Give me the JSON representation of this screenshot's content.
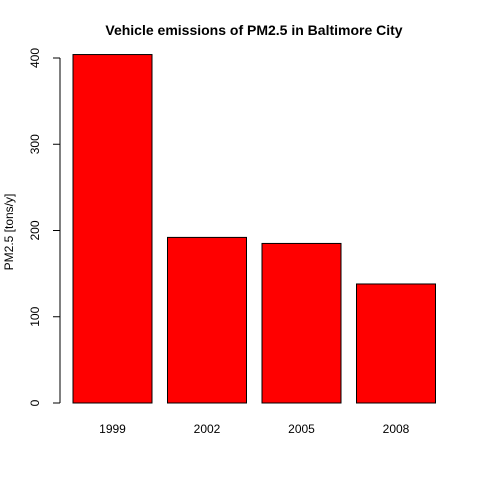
{
  "chart_data": {
    "type": "bar",
    "title": "Vehicle emissions of PM2.5 in Baltimore City",
    "xlabel": "",
    "ylabel": "PM2.5 [tons/y]",
    "categories": [
      "1999",
      "2002",
      "2005",
      "2008"
    ],
    "values": [
      404,
      192,
      185,
      138
    ],
    "ylim": [
      0,
      400
    ],
    "yticks": [
      0,
      100,
      200,
      300,
      400
    ],
    "bar_color": "#ff0000",
    "bar_border_color": "#000000",
    "grid": false,
    "legend": "none"
  }
}
